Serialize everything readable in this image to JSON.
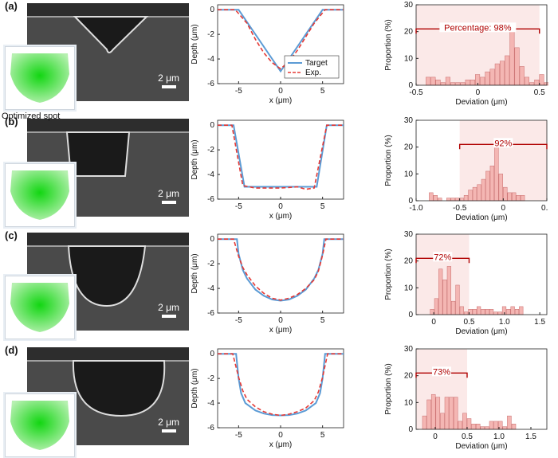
{
  "panel_labels": [
    "(a)",
    "(b)",
    "(c)",
    "(d)"
  ],
  "optimized_spot_label": "Optimized spot",
  "scale_bar_label": "2 μm",
  "colors": {
    "target": "#5b9bd5",
    "experiment": "#e53935",
    "bar_fill": "#f4b6b3",
    "bar_stroke": "#c96d6d",
    "bracket": "#b00000",
    "shade": "#fbe9e8"
  },
  "chart_data": [
    {
      "type": "line",
      "panel": "(a)",
      "xlabel": "x (μm)",
      "ylabel": "Depth (μm)",
      "xticks": [
        -5,
        0,
        5
      ],
      "yticks": [
        0,
        -2,
        -4,
        -6
      ],
      "xlim": [
        -7.5,
        7.5
      ],
      "ylim": [
        -6,
        0.4
      ],
      "legend": [
        "Target",
        "Exp."
      ],
      "series": [
        {
          "name": "Target",
          "x": [
            -7.5,
            -5,
            0,
            5,
            7.5
          ],
          "y": [
            0,
            0,
            -5,
            0,
            0
          ]
        },
        {
          "name": "Exp.",
          "x": [
            -7.5,
            -5.4,
            -4,
            -3,
            -2,
            -1,
            0,
            1,
            2,
            3,
            4,
            5.3,
            7.5
          ],
          "y": [
            0,
            0,
            -1.1,
            -2.4,
            -3.5,
            -4.3,
            -4.8,
            -4.2,
            -3.3,
            -2.2,
            -1.1,
            0,
            0
          ]
        }
      ]
    },
    {
      "type": "bar",
      "panel": "(a)",
      "xlabel": "Deviation (μm)",
      "ylabel": "Proportion (%)",
      "xticks": [
        -0.5,
        0,
        0.5
      ],
      "yticks": [
        0,
        10,
        20,
        30
      ],
      "xlim": [
        -0.5,
        0.56
      ],
      "ylim": [
        0,
        30
      ],
      "bracket_text": "Percentage: 98%",
      "bracket_range": [
        -0.5,
        0.5
      ],
      "bins_start": -0.42,
      "bin_width": 0.04,
      "values": [
        3,
        3,
        2,
        1,
        3,
        1,
        1,
        1,
        2,
        2,
        4,
        3,
        5,
        6,
        8,
        9,
        11,
        21,
        14,
        7,
        3,
        1,
        2,
        4,
        1,
        1,
        3,
        3
      ]
    },
    {
      "type": "line",
      "panel": "(b)",
      "xlabel": "x (μm)",
      "ylabel": "Depth (μm)",
      "xticks": [
        -5,
        0,
        5
      ],
      "yticks": [
        0,
        -2,
        -4,
        -6
      ],
      "xlim": [
        -7.5,
        7.5
      ],
      "ylim": [
        -6,
        0.4
      ],
      "series": [
        {
          "name": "Target",
          "x": [
            -7.5,
            -5.6,
            -4.3,
            4.3,
            5.5,
            7.5
          ],
          "y": [
            0,
            0,
            -5,
            -5,
            0,
            0
          ]
        },
        {
          "name": "Exp.",
          "x": [
            -7.5,
            -5.8,
            -4.5,
            -3,
            0,
            2,
            3,
            4,
            5.5,
            7.5
          ],
          "y": [
            0,
            0,
            -4.9,
            -5.1,
            -5.1,
            -5,
            -5.2,
            -5.1,
            0,
            0
          ]
        }
      ]
    },
    {
      "type": "bar",
      "panel": "(b)",
      "xlabel": "Deviation (μm)",
      "ylabel": "Proportion (%)",
      "xticks": [
        -1.0,
        -0.5,
        0,
        0.5
      ],
      "yticks": [
        0,
        10,
        20,
        30
      ],
      "xlim": [
        -1.0,
        0.5
      ],
      "ylim": [
        0,
        30
      ],
      "bracket_text": "92%",
      "bracket_range": [
        -0.5,
        0.5
      ],
      "bins_start": -0.85,
      "bin_width": 0.05,
      "values": [
        3,
        2,
        1,
        0,
        1,
        1,
        1,
        1,
        2,
        4,
        5,
        6,
        8,
        11,
        13,
        23,
        10,
        5,
        3,
        3,
        2,
        2
      ]
    },
    {
      "type": "line",
      "panel": "(c)",
      "xlabel": "x (μm)",
      "ylabel": "Depth (μm)",
      "xticks": [
        -5,
        0,
        5
      ],
      "yticks": [
        0,
        -2,
        -4,
        -6
      ],
      "xlim": [
        -7.5,
        7.5
      ],
      "ylim": [
        -6,
        0.4
      ],
      "series": [
        {
          "name": "Target",
          "x": [
            -7.5,
            -5.2,
            -5,
            -4.5,
            -4,
            -3,
            -2,
            -1,
            0,
            1,
            2,
            3,
            4,
            4.5,
            5,
            5.2,
            7.5
          ],
          "y": [
            0,
            0,
            -1.2,
            -2.5,
            -3.2,
            -4.1,
            -4.6,
            -4.9,
            -5,
            -4.9,
            -4.6,
            -4.1,
            -3.2,
            -2.5,
            -1.2,
            0,
            0
          ]
        },
        {
          "name": "Exp.",
          "x": [
            -7.5,
            -5.6,
            -5,
            -4.5,
            -4,
            -3,
            -2,
            -1,
            0,
            1,
            2,
            3,
            4,
            4.5,
            5,
            5.4,
            7.5
          ],
          "y": [
            0,
            0,
            -1.4,
            -2.3,
            -2.9,
            -3.8,
            -4.4,
            -4.8,
            -4.95,
            -4.8,
            -4.5,
            -4,
            -3.3,
            -2.6,
            -1.3,
            0,
            0
          ]
        }
      ]
    },
    {
      "type": "bar",
      "panel": "(c)",
      "xlabel": "Deviation (μm)",
      "ylabel": "Proportion (%)",
      "xticks": [
        0,
        0.5,
        1.0,
        1.5
      ],
      "yticks": [
        0,
        10,
        20,
        30
      ],
      "xlim": [
        -0.25,
        1.6
      ],
      "ylim": [
        0,
        30
      ],
      "bracket_text": "72%",
      "bracket_range": [
        -0.25,
        0.5
      ],
      "bins_start": -0.05,
      "bin_width": 0.06,
      "values": [
        2,
        6,
        17,
        13,
        18,
        5,
        11,
        3,
        1,
        2,
        2,
        3,
        2,
        2,
        2,
        1,
        1,
        3,
        2,
        3,
        2,
        3
      ]
    },
    {
      "type": "line",
      "panel": "(d)",
      "xlabel": "x (μm)",
      "ylabel": "Depth (μm)",
      "xticks": [
        -5,
        0,
        5
      ],
      "yticks": [
        0,
        -2,
        -4,
        -6
      ],
      "xlim": [
        -7.5,
        7.5
      ],
      "ylim": [
        -6,
        0.4
      ],
      "series": [
        {
          "name": "Target",
          "x": [
            -7.5,
            -5.3,
            -5,
            -4.7,
            -4.2,
            -3,
            -2,
            -1,
            0,
            1,
            2,
            3,
            4.2,
            4.7,
            5,
            5.3,
            7.5
          ],
          "y": [
            0,
            0,
            -2,
            -3.2,
            -4,
            -4.6,
            -4.85,
            -4.97,
            -5,
            -4.97,
            -4.85,
            -4.6,
            -4,
            -3.2,
            -2,
            0,
            0
          ]
        },
        {
          "name": "Exp.",
          "x": [
            -7.5,
            -5.7,
            -5,
            -4.5,
            -4,
            -3,
            -2,
            -1,
            0,
            1,
            2,
            3,
            4,
            4.5,
            5,
            5.6,
            7.5
          ],
          "y": [
            0,
            0,
            -1.9,
            -3,
            -3.7,
            -4.3,
            -4.7,
            -4.9,
            -5,
            -4.9,
            -4.7,
            -4.4,
            -3.8,
            -3.1,
            -1.9,
            0,
            0
          ]
        }
      ]
    },
    {
      "type": "bar",
      "panel": "(d)",
      "xlabel": "Deviation (μm)",
      "ylabel": "Proportion (%)",
      "xticks": [
        0,
        0.5,
        1.0,
        1.5
      ],
      "yticks": [
        0,
        10,
        20,
        30
      ],
      "xlim": [
        -0.3,
        1.75
      ],
      "ylim": [
        0,
        30
      ],
      "bracket_text": "73%",
      "bracket_range": [
        -0.3,
        0.5
      ],
      "bins_start": -0.2,
      "bin_width": 0.07,
      "values": [
        5,
        11,
        13,
        12,
        6,
        12,
        12,
        12,
        3,
        6,
        4,
        2,
        2,
        1,
        1,
        3,
        3,
        3,
        1,
        5,
        2
      ]
    }
  ]
}
